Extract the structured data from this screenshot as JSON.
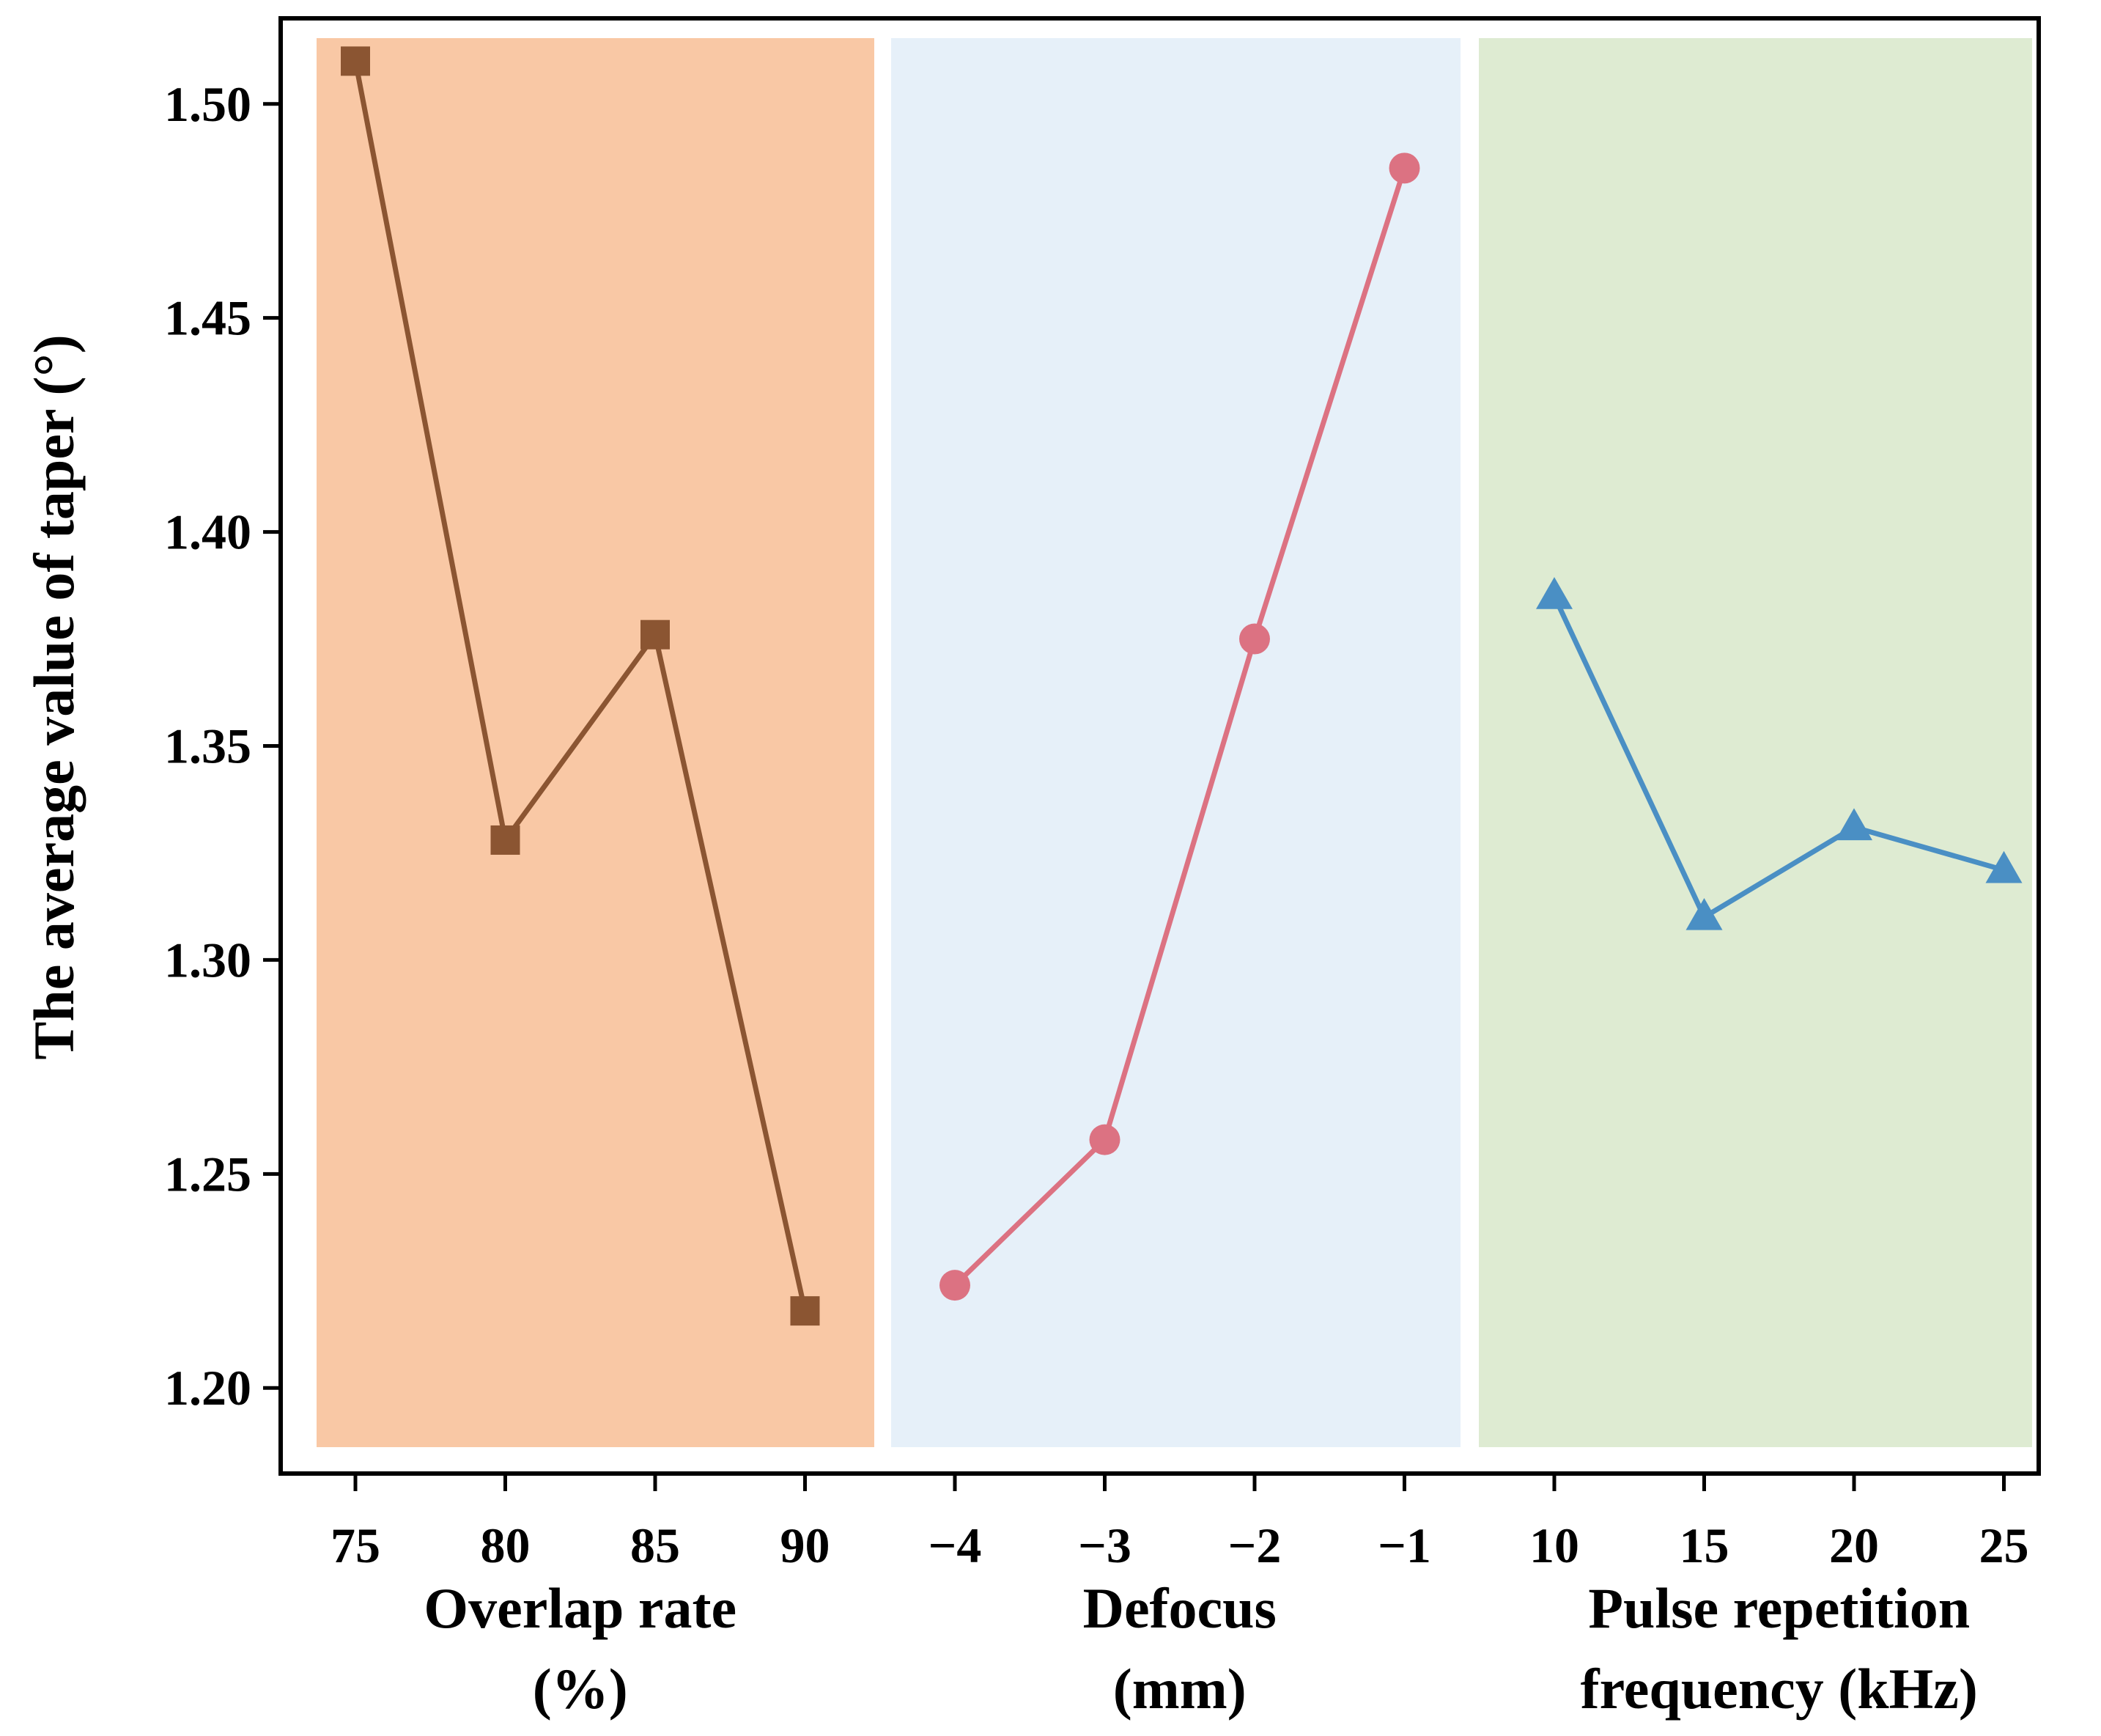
{
  "chart_data": {
    "type": "line",
    "ylabel": "The average value of taper (°)",
    "ylim": [
      1.18,
      1.52
    ],
    "y_ticks": [
      1.2,
      1.25,
      1.3,
      1.35,
      1.4,
      1.45,
      1.5
    ],
    "y_tick_labels": [
      "1.20",
      "1.25",
      "1.30",
      "1.35",
      "1.40",
      "1.45",
      "1.50"
    ],
    "grid": false,
    "groups": [
      {
        "xlabel_line1": "Overlap rate",
        "xlabel_line2": "(%)",
        "background": "#f9c8a5",
        "categories": [
          "75",
          "80",
          "85",
          "90"
        ],
        "series": [
          {
            "values": [
              1.51,
              1.328,
              1.376,
              1.218
            ],
            "color": "#8b5532",
            "marker": "square"
          }
        ]
      },
      {
        "xlabel_line1": "Defocus",
        "xlabel_line2": "(mm)",
        "background": "#e6f0f9",
        "categories": [
          "−4",
          "−3",
          "−2",
          "−1"
        ],
        "series": [
          {
            "values": [
              1.224,
              1.258,
              1.375,
              1.485
            ],
            "color": "#dc7282",
            "marker": "circle"
          }
        ]
      },
      {
        "xlabel_line1": "Pulse repetition",
        "xlabel_line2": "frequency (kHz)",
        "background": "#deebd2",
        "categories": [
          "10",
          "15",
          "20",
          "25"
        ],
        "series": [
          {
            "values": [
              1.385,
              1.31,
              1.331,
              1.321
            ],
            "color": "#4a8fc4",
            "marker": "triangle"
          }
        ]
      }
    ]
  }
}
